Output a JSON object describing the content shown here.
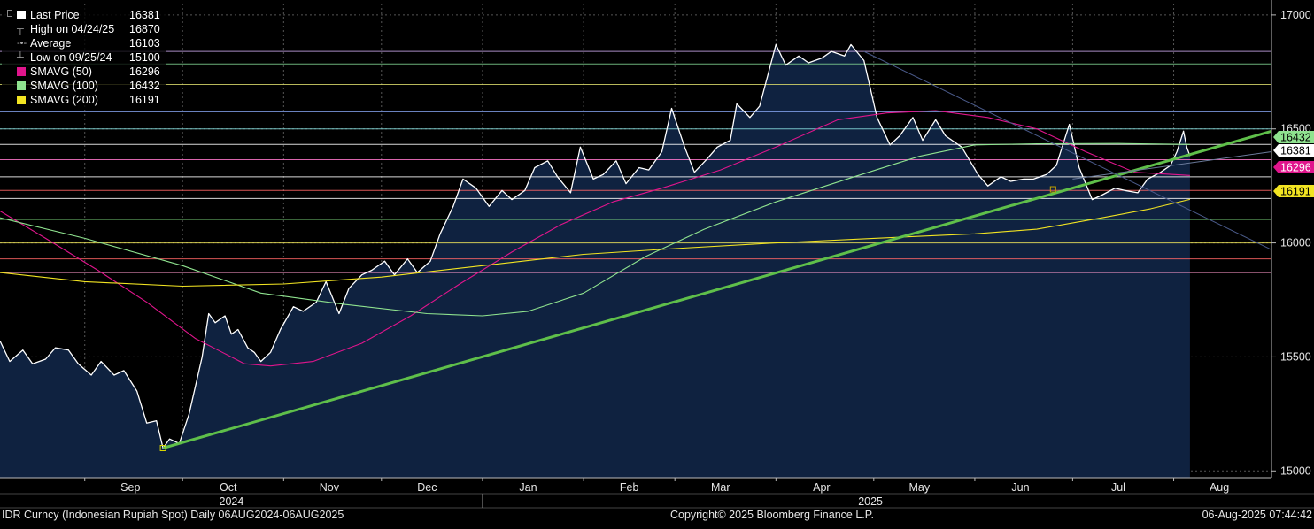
{
  "legend": {
    "items": [
      {
        "label": "Last Price",
        "value": "16381",
        "color": "#ffffff",
        "kind": "box"
      },
      {
        "label": "High on 04/24/25",
        "value": "16870",
        "color": "#aaaaaa",
        "kind": "high"
      },
      {
        "label": "Average",
        "value": "16103",
        "color": "#aaaaaa",
        "kind": "avg"
      },
      {
        "label": "Low on 09/25/24",
        "value": "15100",
        "color": "#aaaaaa",
        "kind": "low"
      },
      {
        "label": "SMAVG (50)",
        "value": "16296",
        "color": "#e0158c",
        "kind": "box"
      },
      {
        "label": "SMAVG (100)",
        "value": "16432",
        "color": "#8fe38f",
        "kind": "box"
      },
      {
        "label": "SMAVG (200)",
        "value": "16191",
        "color": "#f2e422",
        "kind": "box"
      }
    ]
  },
  "price_tags": [
    {
      "label": "16432",
      "value": 16432,
      "bg": "#8fe38f",
      "fg": "#000000"
    },
    {
      "label": "16381",
      "value": 16381,
      "bg": "#ffffff",
      "fg": "#000000"
    },
    {
      "label": "16296",
      "value": 16296,
      "bg": "#e0158c",
      "fg": "#ffffff"
    },
    {
      "label": "16191",
      "value": 16191,
      "bg": "#f2e422",
      "fg": "#000000"
    }
  ],
  "footer": {
    "left": "IDR Curncy (Indonesian Rupiah Spot)  Daily 06AUG2024-06AUG2025",
    "center": "Copyright© 2025 Bloomberg Finance L.P.",
    "right": "06-Aug-2025 07:44:42"
  },
  "chart_data": {
    "type": "area",
    "ylim": [
      14970,
      17050
    ],
    "y_ticks": [
      15000,
      15500,
      16000,
      16500,
      17000
    ],
    "y_tick_labels": [
      "15000",
      "15500",
      "16000",
      "16500",
      "17000"
    ],
    "x_range": [
      "2024-08-06",
      "2025-08-31"
    ],
    "month_labels": [
      {
        "label": "Sep",
        "date": "2024-09-15"
      },
      {
        "label": "Oct",
        "date": "2024-10-15"
      },
      {
        "label": "Nov",
        "date": "2024-11-15"
      },
      {
        "label": "Dec",
        "date": "2024-12-15"
      },
      {
        "label": "Jan",
        "date": "2025-01-15"
      },
      {
        "label": "Feb",
        "date": "2025-02-15"
      },
      {
        "label": "Mar",
        "date": "2025-03-15"
      },
      {
        "label": "Apr",
        "date": "2025-04-15"
      },
      {
        "label": "May",
        "date": "2025-05-15"
      },
      {
        "label": "Jun",
        "date": "2025-06-15"
      },
      {
        "label": "Jul",
        "date": "2025-07-15"
      },
      {
        "label": "Aug",
        "date": "2025-08-15"
      }
    ],
    "month_boundaries": [
      "2024-09-01",
      "2024-10-01",
      "2024-11-01",
      "2024-12-01",
      "2025-01-01",
      "2025-02-01",
      "2025-03-01",
      "2025-04-01",
      "2025-05-01",
      "2025-06-01",
      "2025-07-01",
      "2025-08-01"
    ],
    "year_labels": [
      {
        "label": "2024",
        "date": "2024-10-16"
      },
      {
        "label": "2025",
        "date": "2025-04-30"
      }
    ],
    "year_divider": "2025-01-01",
    "grid": true,
    "legend_position": "top-left",
    "horizontal_levels": [
      {
        "value": 16840,
        "color": "#c7a6e8"
      },
      {
        "value": 16785,
        "color": "#7fcf8f"
      },
      {
        "value": 16695,
        "color": "#d7d76a"
      },
      {
        "value": 16575,
        "color": "#8fb0ff"
      },
      {
        "value": 16500,
        "color": "#88e0e0"
      },
      {
        "value": 16432,
        "color": "#ffffff"
      },
      {
        "value": 16365,
        "color": "#ff77cc"
      },
      {
        "value": 16290,
        "color": "#ffffff"
      },
      {
        "value": 16230,
        "color": "#ff6666"
      },
      {
        "value": 16195,
        "color": "#ffffff"
      },
      {
        "value": 16103,
        "color": "#88ee88"
      },
      {
        "value": 16000,
        "color": "#f2e85a"
      },
      {
        "value": 15930,
        "color": "#ff6666"
      },
      {
        "value": 15870,
        "color": "#ff99cc"
      }
    ],
    "series": [
      {
        "name": "Last Price",
        "color": "#ffffff",
        "fill": "#0f2240",
        "points": [
          [
            "2024-08-06",
            15570
          ],
          [
            "2024-08-09",
            15480
          ],
          [
            "2024-08-13",
            15530
          ],
          [
            "2024-08-16",
            15470
          ],
          [
            "2024-08-20",
            15490
          ],
          [
            "2024-08-23",
            15540
          ],
          [
            "2024-08-27",
            15530
          ],
          [
            "2024-08-30",
            15470
          ],
          [
            "2024-09-03",
            15420
          ],
          [
            "2024-09-06",
            15480
          ],
          [
            "2024-09-10",
            15420
          ],
          [
            "2024-09-13",
            15440
          ],
          [
            "2024-09-17",
            15350
          ],
          [
            "2024-09-20",
            15210
          ],
          [
            "2024-09-23",
            15220
          ],
          [
            "2024-09-25",
            15100
          ],
          [
            "2024-09-27",
            15140
          ],
          [
            "2024-09-30",
            15120
          ],
          [
            "2024-10-03",
            15250
          ],
          [
            "2024-10-07",
            15500
          ],
          [
            "2024-10-09",
            15690
          ],
          [
            "2024-10-11",
            15650
          ],
          [
            "2024-10-14",
            15680
          ],
          [
            "2024-10-16",
            15600
          ],
          [
            "2024-10-18",
            15620
          ],
          [
            "2024-10-21",
            15540
          ],
          [
            "2024-10-23",
            15520
          ],
          [
            "2024-10-25",
            15480
          ],
          [
            "2024-10-28",
            15520
          ],
          [
            "2024-10-31",
            15620
          ],
          [
            "2024-11-04",
            15720
          ],
          [
            "2024-11-07",
            15700
          ],
          [
            "2024-11-11",
            15740
          ],
          [
            "2024-11-14",
            15830
          ],
          [
            "2024-11-18",
            15690
          ],
          [
            "2024-11-21",
            15800
          ],
          [
            "2024-11-25",
            15860
          ],
          [
            "2024-11-28",
            15880
          ],
          [
            "2024-12-02",
            15920
          ],
          [
            "2024-12-05",
            15860
          ],
          [
            "2024-12-09",
            15930
          ],
          [
            "2024-12-12",
            15870
          ],
          [
            "2024-12-16",
            15920
          ],
          [
            "2024-12-19",
            16040
          ],
          [
            "2024-12-23",
            16160
          ],
          [
            "2024-12-26",
            16280
          ],
          [
            "2024-12-30",
            16240
          ],
          [
            "2025-01-03",
            16160
          ],
          [
            "2025-01-07",
            16230
          ],
          [
            "2025-01-10",
            16190
          ],
          [
            "2025-01-14",
            16230
          ],
          [
            "2025-01-17",
            16330
          ],
          [
            "2025-01-21",
            16360
          ],
          [
            "2025-01-24",
            16290
          ],
          [
            "2025-01-28",
            16220
          ],
          [
            "2025-01-31",
            16420
          ],
          [
            "2025-02-04",
            16280
          ],
          [
            "2025-02-07",
            16300
          ],
          [
            "2025-02-11",
            16360
          ],
          [
            "2025-02-14",
            16260
          ],
          [
            "2025-02-18",
            16330
          ],
          [
            "2025-02-21",
            16320
          ],
          [
            "2025-02-25",
            16400
          ],
          [
            "2025-02-28",
            16590
          ],
          [
            "2025-03-04",
            16420
          ],
          [
            "2025-03-07",
            16310
          ],
          [
            "2025-03-11",
            16370
          ],
          [
            "2025-03-14",
            16420
          ],
          [
            "2025-03-18",
            16450
          ],
          [
            "2025-03-20",
            16610
          ],
          [
            "2025-03-24",
            16550
          ],
          [
            "2025-03-27",
            16600
          ],
          [
            "2025-04-01",
            16870
          ],
          [
            "2025-04-04",
            16780
          ],
          [
            "2025-04-08",
            16820
          ],
          [
            "2025-04-11",
            16790
          ],
          [
            "2025-04-15",
            16810
          ],
          [
            "2025-04-18",
            16840
          ],
          [
            "2025-04-22",
            16820
          ],
          [
            "2025-04-24",
            16870
          ],
          [
            "2025-04-28",
            16800
          ],
          [
            "2025-05-02",
            16550
          ],
          [
            "2025-05-06",
            16430
          ],
          [
            "2025-05-09",
            16470
          ],
          [
            "2025-05-13",
            16550
          ],
          [
            "2025-05-16",
            16450
          ],
          [
            "2025-05-20",
            16540
          ],
          [
            "2025-05-23",
            16470
          ],
          [
            "2025-05-28",
            16420
          ],
          [
            "2025-06-02",
            16300
          ],
          [
            "2025-06-05",
            16250
          ],
          [
            "2025-06-09",
            16290
          ],
          [
            "2025-06-12",
            16270
          ],
          [
            "2025-06-16",
            16280
          ],
          [
            "2025-06-19",
            16280
          ],
          [
            "2025-06-23",
            16300
          ],
          [
            "2025-06-26",
            16340
          ],
          [
            "2025-06-30",
            16520
          ],
          [
            "2025-07-03",
            16330
          ],
          [
            "2025-07-07",
            16190
          ],
          [
            "2025-07-10",
            16210
          ],
          [
            "2025-07-14",
            16240
          ],
          [
            "2025-07-17",
            16230
          ],
          [
            "2025-07-21",
            16220
          ],
          [
            "2025-07-24",
            16280
          ],
          [
            "2025-07-28",
            16310
          ],
          [
            "2025-07-31",
            16340
          ],
          [
            "2025-08-02",
            16400
          ],
          [
            "2025-08-04",
            16490
          ],
          [
            "2025-08-05",
            16420
          ],
          [
            "2025-08-06",
            16381
          ]
        ]
      },
      {
        "name": "SMAVG (50)",
        "color": "#e0158c",
        "points": [
          [
            "2024-08-06",
            16140
          ],
          [
            "2024-08-20",
            16020
          ],
          [
            "2024-09-05",
            15880
          ],
          [
            "2024-09-20",
            15740
          ],
          [
            "2024-10-05",
            15580
          ],
          [
            "2024-10-20",
            15470
          ],
          [
            "2024-10-28",
            15460
          ],
          [
            "2024-11-10",
            15480
          ],
          [
            "2024-11-25",
            15560
          ],
          [
            "2024-12-10",
            15680
          ],
          [
            "2024-12-25",
            15820
          ],
          [
            "2025-01-10",
            15960
          ],
          [
            "2025-01-25",
            16080
          ],
          [
            "2025-02-10",
            16180
          ],
          [
            "2025-02-25",
            16240
          ],
          [
            "2025-03-15",
            16320
          ],
          [
            "2025-04-01",
            16420
          ],
          [
            "2025-04-20",
            16540
          ],
          [
            "2025-05-05",
            16570
          ],
          [
            "2025-05-20",
            16580
          ],
          [
            "2025-06-05",
            16550
          ],
          [
            "2025-06-20",
            16500
          ],
          [
            "2025-07-05",
            16400
          ],
          [
            "2025-07-20",
            16310
          ],
          [
            "2025-08-06",
            16296
          ]
        ]
      },
      {
        "name": "SMAVG (100)",
        "color": "#8fe38f",
        "points": [
          [
            "2024-08-06",
            16110
          ],
          [
            "2024-09-01",
            16020
          ],
          [
            "2024-10-01",
            15900
          ],
          [
            "2024-10-25",
            15780
          ],
          [
            "2024-11-20",
            15730
          ],
          [
            "2024-12-15",
            15690
          ],
          [
            "2025-01-01",
            15680
          ],
          [
            "2025-01-15",
            15700
          ],
          [
            "2025-02-01",
            15780
          ],
          [
            "2025-02-20",
            15940
          ],
          [
            "2025-03-10",
            16060
          ],
          [
            "2025-04-01",
            16180
          ],
          [
            "2025-04-25",
            16290
          ],
          [
            "2025-05-15",
            16380
          ],
          [
            "2025-06-01",
            16430
          ],
          [
            "2025-06-20",
            16435
          ],
          [
            "2025-07-15",
            16436
          ],
          [
            "2025-08-06",
            16432
          ]
        ]
      },
      {
        "name": "SMAVG (200)",
        "color": "#f2e422",
        "points": [
          [
            "2024-08-06",
            15870
          ],
          [
            "2024-09-01",
            15830
          ],
          [
            "2024-10-01",
            15810
          ],
          [
            "2024-11-01",
            15820
          ],
          [
            "2024-12-01",
            15850
          ],
          [
            "2025-01-01",
            15900
          ],
          [
            "2025-02-01",
            15950
          ],
          [
            "2025-03-01",
            15975
          ],
          [
            "2025-04-01",
            16000
          ],
          [
            "2025-05-01",
            16020
          ],
          [
            "2025-06-01",
            16040
          ],
          [
            "2025-06-20",
            16060
          ],
          [
            "2025-07-10",
            16110
          ],
          [
            "2025-07-25",
            16150
          ],
          [
            "2025-08-06",
            16191
          ]
        ]
      }
    ],
    "trend_lines": [
      {
        "from": [
          "2024-09-25",
          15100
        ],
        "to": [
          "2025-08-31",
          16490
        ],
        "color": "#5fbf4a",
        "width": 3
      },
      {
        "from": [
          "2025-04-28",
          16840
        ],
        "to": [
          "2025-08-31",
          15970
        ],
        "color": "#4a5a8a",
        "width": 1
      },
      {
        "from": [
          "2025-07-01",
          16280
        ],
        "to": [
          "2025-08-31",
          16400
        ],
        "color": "#6a7a9a",
        "width": 1
      }
    ],
    "markers": [
      {
        "at": [
          "2024-09-25",
          15100
        ],
        "color": "#d8d400"
      },
      {
        "at": [
          "2025-06-25",
          16235
        ],
        "color": "#c8a400"
      }
    ]
  }
}
